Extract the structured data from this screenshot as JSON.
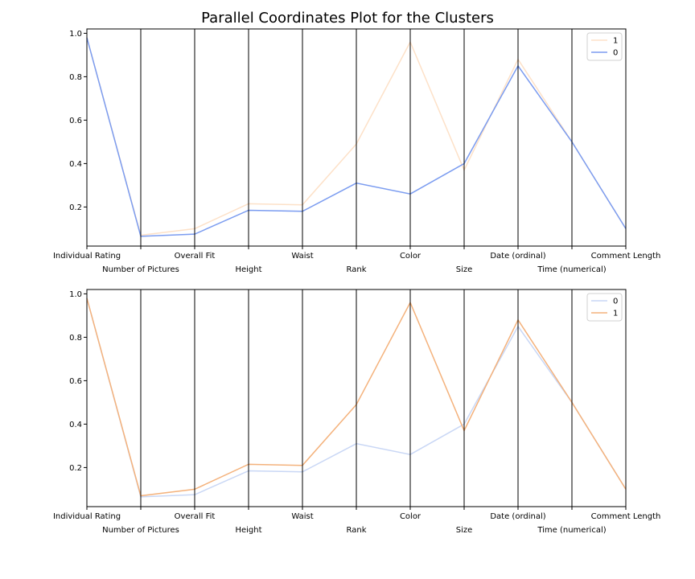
{
  "title": "Parallel Coordinates Plot for the Clusters",
  "colors": {
    "cluster0_top": "#7b9cf0",
    "cluster1_top": "#fde1c8",
    "cluster0_bottom": "#c9d7f5",
    "cluster1_bottom": "#f4b27c"
  },
  "chart_data": [
    {
      "type": "line",
      "subtype": "parallel-coordinates",
      "categories": [
        "Individual Rating",
        "Number of Pictures",
        "Overall Fit",
        "Height",
        "Waist",
        "Rank",
        "Color",
        "Size",
        "Date (ordinal)",
        "Time (numerical)",
        "Comment Length"
      ],
      "ylim": [
        0.02,
        1.02
      ],
      "yticks": [
        "0.2",
        "0.4",
        "0.6",
        "0.8",
        "1.0"
      ],
      "legend_position": "top-right",
      "series": [
        {
          "name": "1",
          "color": "#fde1c8",
          "values": [
            0.98,
            0.07,
            0.1,
            0.215,
            0.21,
            0.49,
            0.96,
            0.37,
            0.88,
            0.5,
            0.1
          ]
        },
        {
          "name": "0",
          "color": "#7b9cf0",
          "values": [
            0.98,
            0.065,
            0.075,
            0.185,
            0.18,
            0.31,
            0.26,
            0.4,
            0.85,
            0.5,
            0.1
          ]
        }
      ]
    },
    {
      "type": "line",
      "subtype": "parallel-coordinates",
      "categories": [
        "Individual Rating",
        "Number of Pictures",
        "Overall Fit",
        "Height",
        "Waist",
        "Rank",
        "Color",
        "Size",
        "Date (ordinal)",
        "Time (numerical)",
        "Comment Length"
      ],
      "ylim": [
        0.02,
        1.02
      ],
      "yticks": [
        "0.2",
        "0.4",
        "0.6",
        "0.8",
        "1.0"
      ],
      "legend_position": "top-right",
      "series": [
        {
          "name": "0",
          "color": "#c9d7f5",
          "values": [
            0.98,
            0.065,
            0.075,
            0.185,
            0.18,
            0.31,
            0.26,
            0.4,
            0.85,
            0.5,
            0.1
          ]
        },
        {
          "name": "1",
          "color": "#f4b27c",
          "values": [
            0.98,
            0.07,
            0.1,
            0.215,
            0.21,
            0.49,
            0.96,
            0.37,
            0.88,
            0.5,
            0.1
          ]
        }
      ]
    }
  ]
}
